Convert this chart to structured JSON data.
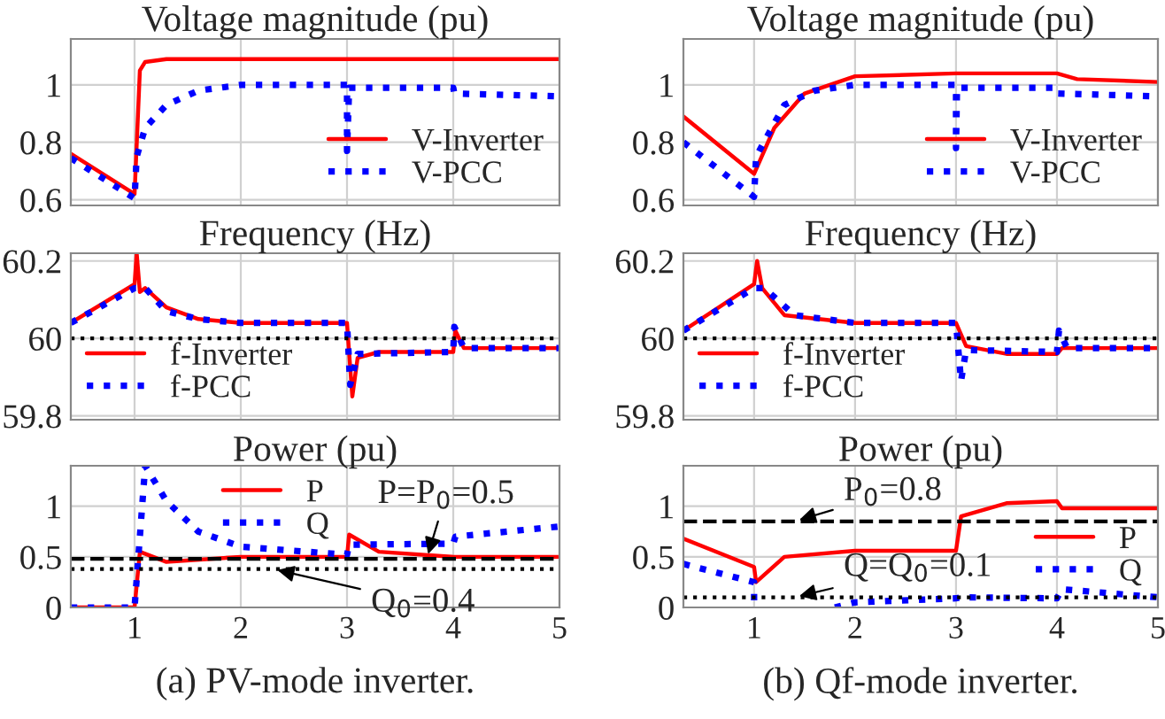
{
  "chart_data": [
    {
      "type": "line",
      "title": "Voltage magnitude (pu)",
      "xlim": [
        0.4,
        5
      ],
      "xticks": [
        1,
        2,
        3,
        4,
        5
      ],
      "ylim": [
        0.58,
        1.16
      ],
      "yticks": [
        0.6,
        0.8,
        1
      ],
      "tick_labels": "y",
      "grid": true,
      "legend": "bottom right",
      "series": [
        {
          "name": "V-Inverter",
          "color": "#ff0000",
          "line_style": "solid",
          "x": [
            0.4,
            1.0,
            1.05,
            1.1,
            1.3,
            5
          ],
          "values": [
            0.76,
            0.62,
            1.05,
            1.08,
            1.09,
            1.09
          ]
        },
        {
          "name": "V-PCC",
          "color": "#0000ff",
          "line_style": "dotted",
          "x": [
            0.4,
            1.0,
            1.02,
            1.1,
            1.3,
            1.6,
            2,
            3,
            3.0,
            3.02,
            4,
            4.01,
            5
          ],
          "values": [
            0.745,
            0.605,
            0.75,
            0.85,
            0.93,
            0.98,
            1.0,
            1.0,
            0.77,
            0.99,
            0.99,
            0.97,
            0.96
          ]
        }
      ]
    },
    {
      "type": "line",
      "title": "Voltage magnitude (pu)",
      "xlim": [
        0.3,
        5
      ],
      "xticks": [
        1,
        2,
        3,
        4,
        5
      ],
      "ylim": [
        0.58,
        1.16
      ],
      "yticks": [
        0.6,
        0.8,
        1
      ],
      "tick_labels": "y",
      "grid": true,
      "legend": "bottom right",
      "series": [
        {
          "name": "V-Inverter",
          "color": "#ff0000",
          "line_style": "solid",
          "x": [
            0.3,
            1.0,
            1.2,
            1.5,
            2,
            3,
            4,
            4.2,
            5
          ],
          "values": [
            0.89,
            0.69,
            0.85,
            0.97,
            1.03,
            1.04,
            1.04,
            1.02,
            1.01
          ]
        },
        {
          "name": "V-PCC",
          "color": "#0000ff",
          "line_style": "dotted",
          "x": [
            0.3,
            1.0,
            1.02,
            1.3,
            1.6,
            2,
            3,
            3.0,
            3.01,
            4,
            4.01,
            5
          ],
          "values": [
            0.8,
            0.61,
            0.75,
            0.93,
            0.98,
            1.0,
            1.0,
            0.78,
            0.99,
            0.99,
            0.97,
            0.96
          ]
        }
      ]
    },
    {
      "type": "line",
      "title": "Frequency (Hz)",
      "xlim": [
        0.4,
        5
      ],
      "xticks": [
        1,
        2,
        3,
        4,
        5
      ],
      "ylim": [
        59.79,
        60.22
      ],
      "yticks": [
        59.8,
        60,
        60.2
      ],
      "tick_labels": "y",
      "grid": true,
      "legend": "bottom left",
      "ref_lines": [
        {
          "axis": "y",
          "value": 60,
          "color": "#000000",
          "line_style": "dotted"
        }
      ],
      "series": [
        {
          "name": "f-Inverter",
          "color": "#ff0000",
          "line_style": "solid",
          "x": [
            0.4,
            1.0,
            1.02,
            1.05,
            1.1,
            1.3,
            1.6,
            2,
            3,
            3.01,
            3.05,
            3.1,
            3.3,
            4,
            4.02,
            4.1,
            5
          ],
          "values": [
            60.04,
            60.14,
            60.22,
            60.12,
            60.13,
            60.08,
            60.05,
            60.04,
            60.04,
            60.0,
            59.85,
            59.95,
            59.965,
            59.965,
            60.02,
            59.975,
            59.975
          ]
        },
        {
          "name": "f-PCC",
          "color": "#0000ff",
          "line_style": "dotted",
          "x": [
            0.4,
            1.0,
            1.1,
            1.3,
            1.6,
            2,
            3,
            3.03,
            3.1,
            4,
            4.01,
            4.1,
            5
          ],
          "values": [
            60.04,
            60.13,
            60.13,
            60.07,
            60.05,
            60.04,
            60.04,
            59.88,
            59.96,
            59.965,
            60.03,
            59.975,
            59.975
          ]
        }
      ]
    },
    {
      "type": "line",
      "title": "Frequency (Hz)",
      "xlim": [
        0.3,
        5
      ],
      "xticks": [
        1,
        2,
        3,
        4,
        5
      ],
      "ylim": [
        59.79,
        60.22
      ],
      "yticks": [
        59.8,
        60,
        60.2
      ],
      "tick_labels": "y",
      "grid": true,
      "legend": "bottom left",
      "ref_lines": [
        {
          "axis": "y",
          "value": 60,
          "color": "#000000",
          "line_style": "dotted"
        }
      ],
      "series": [
        {
          "name": "f-Inverter",
          "color": "#ff0000",
          "line_style": "solid",
          "x": [
            0.3,
            1.0,
            1.03,
            1.08,
            1.3,
            2,
            3,
            3.1,
            3.5,
            4,
            4.05,
            5
          ],
          "values": [
            60.02,
            60.14,
            60.2,
            60.13,
            60.06,
            60.04,
            60.04,
            59.98,
            59.96,
            59.96,
            59.975,
            59.975
          ]
        },
        {
          "name": "f-PCC",
          "color": "#0000ff",
          "line_style": "dotted",
          "x": [
            0.3,
            1.0,
            1.1,
            1.4,
            2,
            3,
            3.05,
            3.1,
            4,
            4.02,
            4.1,
            5
          ],
          "values": [
            60.02,
            60.13,
            60.13,
            60.06,
            60.04,
            60.04,
            59.89,
            59.97,
            59.965,
            60.02,
            59.975,
            59.975
          ]
        }
      ]
    },
    {
      "type": "line",
      "title": "Power (pu)",
      "xlim": [
        0.4,
        5
      ],
      "xticks": [
        1,
        2,
        3,
        4,
        5
      ],
      "ylim": [
        0,
        1.4
      ],
      "yticks": [
        0,
        0.5,
        1
      ],
      "grid": true,
      "legend": "top center",
      "ref_lines": [
        {
          "axis": "y",
          "value": 0.48,
          "color": "#000000",
          "line_style": "dashed"
        },
        {
          "axis": "y",
          "value": 0.38,
          "color": "#000000",
          "line_style": "dotted"
        }
      ],
      "annotations": [
        {
          "text": "P=P$_{0}$=0.5",
          "x": 3.75,
          "y": 0.48
        },
        {
          "text": "Q$_{0}$=0.4",
          "x": 2.3,
          "y": 0.38
        },
        "(a) PV-mode inverter."
      ],
      "series": [
        {
          "name": "P",
          "color": "#ff0000",
          "line_style": "solid",
          "x": [
            0.4,
            1.0,
            1.05,
            1.3,
            2,
            3,
            3.02,
            3.3,
            4,
            5
          ],
          "values": [
            0,
            0,
            0.55,
            0.45,
            0.5,
            0.5,
            0.72,
            0.55,
            0.5,
            0.5
          ]
        },
        {
          "name": "Q",
          "color": "#0000ff",
          "line_style": "dotted",
          "x": [
            0.4,
            1.0,
            1.1,
            1.3,
            1.6,
            2,
            3,
            3.02,
            4,
            4.02,
            5
          ],
          "values": [
            0,
            0,
            1.4,
            1.05,
            0.75,
            0.6,
            0.52,
            0.62,
            0.63,
            0.7,
            0.8
          ]
        }
      ]
    },
    {
      "type": "line",
      "title": "Power (pu)",
      "xlim": [
        0.3,
        5
      ],
      "xticks": [
        1,
        2,
        3,
        4,
        5
      ],
      "ylim": [
        0,
        1.4
      ],
      "yticks": [
        0,
        0.5,
        1
      ],
      "grid": true,
      "legend": "center right",
      "ref_lines": [
        {
          "axis": "y",
          "value": 0.85,
          "color": "#000000",
          "line_style": "dashed"
        },
        {
          "axis": "y",
          "value": 0.1,
          "color": "#000000",
          "line_style": "dotted"
        }
      ],
      "annotations": [
        {
          "text": "P$_{0}$=0.8",
          "x": 1.4,
          "y": 0.85
        },
        {
          "text": "Q=Q$_{0}$=0.1",
          "x": 1.4,
          "y": 0.1
        },
        "(b) Qf-mode inverter."
      ],
      "series": [
        {
          "name": "P",
          "color": "#ff0000",
          "line_style": "solid",
          "x": [
            0.3,
            1.0,
            1.02,
            1.3,
            2,
            3,
            3.05,
            3.5,
            4,
            4.05,
            5
          ],
          "values": [
            0.68,
            0.4,
            0.25,
            0.5,
            0.56,
            0.56,
            0.9,
            1.03,
            1.05,
            0.98,
            0.98
          ]
        },
        {
          "name": "Q",
          "color": "#0000ff",
          "line_style": "dotted",
          "x": [
            0.3,
            1.0,
            1.0,
            1.4,
            1.8,
            2,
            3,
            3.05,
            4,
            4.05,
            5
          ],
          "values": [
            0.43,
            0.25,
            0,
            null,
            0,
            0.05,
            0.09,
            0.1,
            0.09,
            0.18,
            0.1
          ]
        }
      ]
    }
  ]
}
